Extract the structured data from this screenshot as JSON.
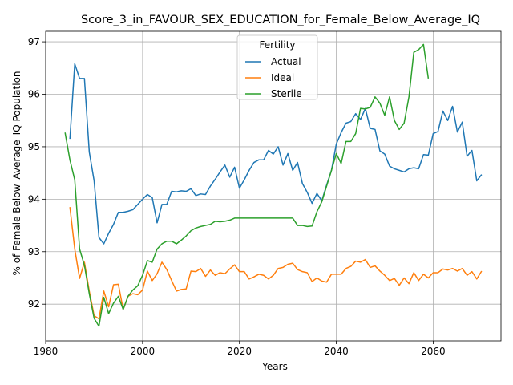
{
  "chart_data": {
    "type": "line",
    "title": "Score_3_in_FAVOUR_SEX_EDUCATION_for_Female_Below_Average_IQ",
    "xlabel": "Years",
    "ylabel": "% of Female Below_Average_IQ Population",
    "xlim": [
      1980,
      2074
    ],
    "ylim": [
      91.3,
      97.2
    ],
    "x_ticks": [
      1980,
      2000,
      2020,
      2040,
      2060
    ],
    "y_ticks": [
      92,
      93,
      94,
      95,
      96,
      97
    ],
    "grid": true,
    "legend": {
      "title": "Fertility",
      "position": "upper-center"
    },
    "series": [
      {
        "name": "Actual",
        "color": "#1f77b4",
        "points": [
          [
            1985,
            95.15
          ],
          [
            1986,
            96.58
          ],
          [
            1987,
            96.3
          ],
          [
            1988,
            96.3
          ],
          [
            1989,
            94.9
          ],
          [
            1990,
            94.35
          ],
          [
            1991,
            93.27
          ],
          [
            1992,
            93.15
          ],
          [
            1993,
            93.35
          ],
          [
            1994,
            93.52
          ],
          [
            1995,
            93.75
          ],
          [
            1996,
            93.75
          ],
          [
            1997,
            93.77
          ],
          [
            1998,
            93.8
          ],
          [
            1999,
            93.9
          ],
          [
            2000,
            94.0
          ],
          [
            2001,
            94.09
          ],
          [
            2002,
            94.03
          ],
          [
            2003,
            93.55
          ],
          [
            2004,
            93.9
          ],
          [
            2005,
            93.9
          ],
          [
            2006,
            94.15
          ],
          [
            2007,
            94.14
          ],
          [
            2008,
            94.16
          ],
          [
            2009,
            94.15
          ],
          [
            2010,
            94.2
          ],
          [
            2011,
            94.07
          ],
          [
            2012,
            94.1
          ],
          [
            2013,
            94.09
          ],
          [
            2014,
            94.25
          ],
          [
            2015,
            94.38
          ],
          [
            2016,
            94.52
          ],
          [
            2017,
            94.65
          ],
          [
            2018,
            94.42
          ],
          [
            2019,
            94.61
          ],
          [
            2020,
            94.21
          ],
          [
            2021,
            94.37
          ],
          [
            2022,
            94.55
          ],
          [
            2023,
            94.7
          ],
          [
            2024,
            94.75
          ],
          [
            2025,
            94.75
          ],
          [
            2026,
            94.93
          ],
          [
            2027,
            94.86
          ],
          [
            2028,
            95.0
          ],
          [
            2029,
            94.65
          ],
          [
            2030,
            94.87
          ],
          [
            2031,
            94.55
          ],
          [
            2032,
            94.7
          ],
          [
            2033,
            94.3
          ],
          [
            2034,
            94.13
          ],
          [
            2035,
            93.92
          ],
          [
            2036,
            94.11
          ],
          [
            2037,
            93.97
          ],
          [
            2038,
            94.27
          ],
          [
            2039,
            94.55
          ],
          [
            2040,
            95.05
          ],
          [
            2041,
            95.27
          ],
          [
            2042,
            95.45
          ],
          [
            2043,
            95.48
          ],
          [
            2044,
            95.63
          ],
          [
            2045,
            95.52
          ],
          [
            2046,
            95.73
          ],
          [
            2047,
            95.35
          ],
          [
            2048,
            95.33
          ],
          [
            2049,
            94.92
          ],
          [
            2050,
            94.86
          ],
          [
            2051,
            94.63
          ],
          [
            2052,
            94.58
          ],
          [
            2053,
            94.55
          ],
          [
            2054,
            94.52
          ],
          [
            2055,
            94.58
          ],
          [
            2056,
            94.6
          ],
          [
            2057,
            94.58
          ],
          [
            2058,
            94.85
          ],
          [
            2059,
            94.84
          ],
          [
            2060,
            95.25
          ],
          [
            2061,
            95.29
          ],
          [
            2062,
            95.68
          ],
          [
            2063,
            95.5
          ],
          [
            2064,
            95.77
          ],
          [
            2065,
            95.28
          ],
          [
            2066,
            95.47
          ],
          [
            2067,
            94.82
          ],
          [
            2068,
            94.93
          ],
          [
            2069,
            94.35
          ],
          [
            2070,
            94.47
          ]
        ]
      },
      {
        "name": "Ideal",
        "color": "#ff7f0e",
        "points": [
          [
            1985,
            93.85
          ],
          [
            1986,
            93.05
          ],
          [
            1987,
            92.49
          ],
          [
            1988,
            92.8
          ],
          [
            1989,
            92.25
          ],
          [
            1990,
            91.78
          ],
          [
            1991,
            91.72
          ],
          [
            1992,
            92.25
          ],
          [
            1993,
            91.95
          ],
          [
            1994,
            92.37
          ],
          [
            1995,
            92.38
          ],
          [
            1996,
            91.9
          ],
          [
            1997,
            92.15
          ],
          [
            1998,
            92.2
          ],
          [
            1999,
            92.18
          ],
          [
            2000,
            92.27
          ],
          [
            2001,
            92.63
          ],
          [
            2002,
            92.45
          ],
          [
            2003,
            92.58
          ],
          [
            2004,
            92.8
          ],
          [
            2005,
            92.66
          ],
          [
            2006,
            92.45
          ],
          [
            2007,
            92.25
          ],
          [
            2008,
            92.28
          ],
          [
            2009,
            92.29
          ],
          [
            2010,
            92.63
          ],
          [
            2011,
            92.62
          ],
          [
            2012,
            92.68
          ],
          [
            2013,
            92.53
          ],
          [
            2014,
            92.65
          ],
          [
            2015,
            92.55
          ],
          [
            2016,
            92.6
          ],
          [
            2017,
            92.58
          ],
          [
            2018,
            92.67
          ],
          [
            2019,
            92.75
          ],
          [
            2020,
            92.62
          ],
          [
            2021,
            92.62
          ],
          [
            2022,
            92.48
          ],
          [
            2023,
            92.52
          ],
          [
            2024,
            92.57
          ],
          [
            2025,
            92.55
          ],
          [
            2026,
            92.48
          ],
          [
            2027,
            92.55
          ],
          [
            2028,
            92.68
          ],
          [
            2029,
            92.7
          ],
          [
            2030,
            92.76
          ],
          [
            2031,
            92.78
          ],
          [
            2032,
            92.66
          ],
          [
            2033,
            92.62
          ],
          [
            2034,
            92.6
          ],
          [
            2035,
            92.43
          ],
          [
            2036,
            92.5
          ],
          [
            2037,
            92.44
          ],
          [
            2038,
            92.42
          ],
          [
            2039,
            92.57
          ],
          [
            2040,
            92.57
          ],
          [
            2041,
            92.57
          ],
          [
            2042,
            92.68
          ],
          [
            2043,
            92.72
          ],
          [
            2044,
            92.82
          ],
          [
            2045,
            92.8
          ],
          [
            2046,
            92.85
          ],
          [
            2047,
            92.7
          ],
          [
            2048,
            92.73
          ],
          [
            2049,
            92.63
          ],
          [
            2050,
            92.55
          ],
          [
            2051,
            92.45
          ],
          [
            2052,
            92.49
          ],
          [
            2053,
            92.36
          ],
          [
            2054,
            92.5
          ],
          [
            2055,
            92.39
          ],
          [
            2056,
            92.6
          ],
          [
            2057,
            92.45
          ],
          [
            2058,
            92.57
          ],
          [
            2059,
            92.5
          ],
          [
            2060,
            92.6
          ],
          [
            2061,
            92.6
          ],
          [
            2062,
            92.67
          ],
          [
            2063,
            92.65
          ],
          [
            2064,
            92.68
          ],
          [
            2065,
            92.63
          ],
          [
            2066,
            92.68
          ],
          [
            2067,
            92.55
          ],
          [
            2068,
            92.62
          ],
          [
            2069,
            92.48
          ],
          [
            2070,
            92.63
          ]
        ]
      },
      {
        "name": "Sterile",
        "color": "#2ca02c",
        "points": [
          [
            1984,
            95.27
          ],
          [
            1985,
            94.75
          ],
          [
            1986,
            94.37
          ],
          [
            1987,
            93.05
          ],
          [
            1988,
            92.74
          ],
          [
            1989,
            92.2
          ],
          [
            1990,
            91.73
          ],
          [
            1991,
            91.58
          ],
          [
            1992,
            92.13
          ],
          [
            1993,
            91.82
          ],
          [
            1994,
            92.02
          ],
          [
            1995,
            92.15
          ],
          [
            1996,
            91.9
          ],
          [
            1997,
            92.15
          ],
          [
            1998,
            92.27
          ],
          [
            1999,
            92.35
          ],
          [
            2000,
            92.55
          ],
          [
            2001,
            92.83
          ],
          [
            2002,
            92.8
          ],
          [
            2003,
            93.05
          ],
          [
            2004,
            93.15
          ],
          [
            2005,
            93.2
          ],
          [
            2006,
            93.2
          ],
          [
            2007,
            93.15
          ],
          [
            2008,
            93.22
          ],
          [
            2009,
            93.3
          ],
          [
            2010,
            93.4
          ],
          [
            2011,
            93.45
          ],
          [
            2012,
            93.48
          ],
          [
            2013,
            93.5
          ],
          [
            2014,
            93.52
          ],
          [
            2015,
            93.58
          ],
          [
            2016,
            93.57
          ],
          [
            2017,
            93.58
          ],
          [
            2018,
            93.6
          ],
          [
            2019,
            93.64
          ],
          [
            2020,
            93.64
          ],
          [
            2021,
            93.64
          ],
          [
            2022,
            93.64
          ],
          [
            2023,
            93.64
          ],
          [
            2024,
            93.64
          ],
          [
            2025,
            93.64
          ],
          [
            2026,
            93.64
          ],
          [
            2027,
            93.64
          ],
          [
            2028,
            93.64
          ],
          [
            2029,
            93.64
          ],
          [
            2030,
            93.64
          ],
          [
            2031,
            93.64
          ],
          [
            2032,
            93.5
          ],
          [
            2033,
            93.5
          ],
          [
            2034,
            93.48
          ],
          [
            2035,
            93.49
          ],
          [
            2036,
            93.76
          ],
          [
            2037,
            93.95
          ],
          [
            2038,
            94.25
          ],
          [
            2039,
            94.55
          ],
          [
            2040,
            94.87
          ],
          [
            2041,
            94.68
          ],
          [
            2042,
            95.1
          ],
          [
            2043,
            95.1
          ],
          [
            2044,
            95.25
          ],
          [
            2045,
            95.73
          ],
          [
            2046,
            95.72
          ],
          [
            2047,
            95.75
          ],
          [
            2048,
            95.95
          ],
          [
            2049,
            95.83
          ],
          [
            2050,
            95.6
          ],
          [
            2051,
            95.95
          ],
          [
            2052,
            95.5
          ],
          [
            2053,
            95.33
          ],
          [
            2054,
            95.45
          ],
          [
            2055,
            95.95
          ],
          [
            2056,
            96.8
          ],
          [
            2057,
            96.85
          ],
          [
            2058,
            96.95
          ],
          [
            2059,
            96.3
          ]
        ]
      }
    ]
  }
}
